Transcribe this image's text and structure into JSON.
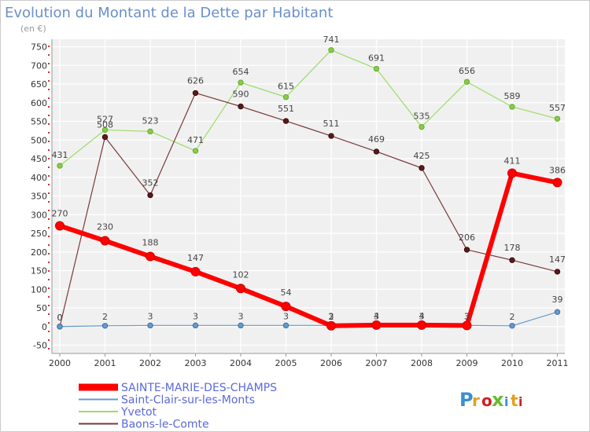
{
  "chart_data": {
    "type": "line",
    "title": "Evolution du Montant de la Dette par Habitant",
    "subtitle": "(en €)",
    "x": [
      "2000",
      "2001",
      "2002",
      "2003",
      "2004",
      "2005",
      "2006",
      "2007",
      "2008",
      "2009",
      "2010",
      "2011"
    ],
    "yticks": [
      "-50",
      "0",
      "50",
      "100",
      "150",
      "200",
      "250",
      "300",
      "350",
      "400",
      "450",
      "500",
      "550",
      "600",
      "650",
      "700",
      "750"
    ],
    "ylim": [
      -50,
      750
    ],
    "grid": true,
    "legend_position": "bottom-left",
    "series": [
      {
        "name": "SAINTE-MARIE-DES-CHAMPS",
        "color": "#ff0000",
        "values": [
          270,
          230,
          188,
          147,
          102,
          54,
          2,
          4,
          4,
          3,
          411,
          386
        ],
        "labels": [
          "270",
          "230",
          "188",
          "147",
          "102",
          "54",
          "2",
          "4",
          "4",
          "3",
          "411",
          "386"
        ]
      },
      {
        "name": "Saint-Clair-sur-les-Monts",
        "color": "#6699cc",
        "values": [
          0,
          2,
          3,
          3,
          3,
          3,
          3,
          3,
          3,
          3,
          2,
          39
        ],
        "labels": [
          "0",
          "2",
          "3",
          "3",
          "3",
          "3",
          "3",
          "3",
          "3",
          "3",
          "2",
          "39"
        ]
      },
      {
        "name": "Yvetot",
        "color": "#99dd66",
        "values": [
          431,
          527,
          523,
          471,
          654,
          615,
          741,
          691,
          535,
          656,
          589,
          557
        ],
        "labels": [
          "431",
          "527",
          "523",
          "471",
          "654",
          "615",
          "741",
          "691",
          "535",
          "656",
          "589",
          "557"
        ]
      },
      {
        "name": "Baons-le-Comte",
        "color": "#6b2a2a",
        "values": [
          0,
          508,
          352,
          626,
          590,
          551,
          511,
          469,
          425,
          206,
          178,
          147
        ],
        "labels": [
          "0",
          "508",
          "352",
          "626",
          "590",
          "551",
          "511",
          "469",
          "425",
          "206",
          "178",
          "147"
        ]
      }
    ]
  },
  "brand": {
    "text": "Proxiti"
  }
}
